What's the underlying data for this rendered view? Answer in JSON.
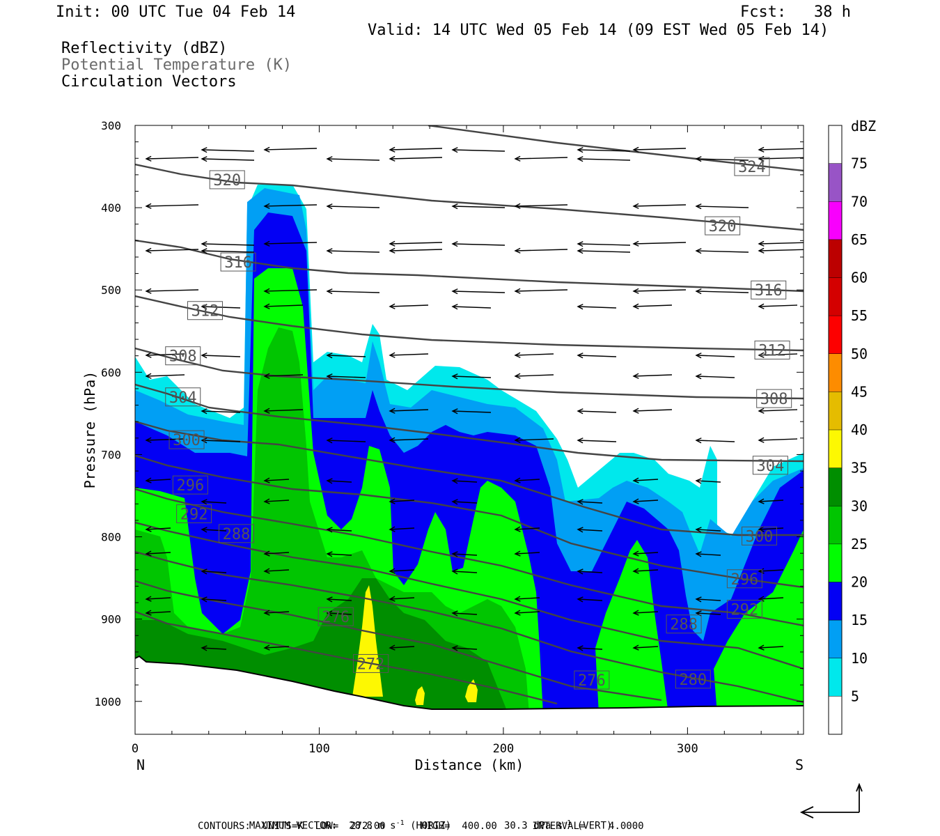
{
  "header": {
    "init": "Init: 00 UTC Tue 04 Feb 14",
    "fcst": "Fcst:   38 h",
    "valid": "Valid: 14 UTC Wed 05 Feb 14 (09 EST Wed 05 Feb 14)",
    "field1": "Reflectivity (dBZ)",
    "field2": "Potential Temperature (K)",
    "field3": "Circulation Vectors"
  },
  "chart_data": {
    "type": "heatmap",
    "title": "Reflectivity (dBZ) / Potential Temperature (K) / Circulation Vectors",
    "xlabel": "Distance (km)",
    "ylabel": "Pressure (hPa)",
    "xlim": [
      0,
      363
    ],
    "ylim": [
      1040,
      300
    ],
    "x_ticks": [
      "0",
      "100",
      "200",
      "300"
    ],
    "y_ticks": [
      "300",
      "400",
      "500",
      "600",
      "700",
      "800",
      "900",
      "1000"
    ],
    "x_end_labels": {
      "left": "N",
      "right": "S"
    },
    "colorbar": {
      "unit": "dBZ",
      "levels": [
        "5",
        "10",
        "15",
        "20",
        "25",
        "30",
        "35",
        "40",
        "45",
        "50",
        "55",
        "60",
        "65",
        "70",
        "75"
      ],
      "colors": [
        "#ffffff",
        "#00e8ec",
        "#019ff4",
        "#0300f4",
        "#02fd02",
        "#01c501",
        "#008e00",
        "#fdf802",
        "#e5bc00",
        "#fd8c00",
        "#fd0000",
        "#d40000",
        "#bc0000",
        "#f800fd",
        "#9854c6",
        "#ffffff"
      ]
    },
    "theta_contours": {
      "units": "K",
      "low": 272,
      "high": 400,
      "interval": 4,
      "labels": [
        {
          "value": "324",
          "x": 335,
          "p": 350
        },
        {
          "value": "320",
          "x": 50,
          "p": 366
        },
        {
          "value": "320",
          "x": 319,
          "p": 422
        },
        {
          "value": "316",
          "x": 56,
          "p": 466
        },
        {
          "value": "316",
          "x": 344,
          "p": 500
        },
        {
          "value": "312",
          "x": 38,
          "p": 525
        },
        {
          "value": "312",
          "x": 346,
          "p": 573
        },
        {
          "value": "308",
          "x": 26,
          "p": 580
        },
        {
          "value": "308",
          "x": 347,
          "p": 632
        },
        {
          "value": "304",
          "x": 26,
          "p": 630
        },
        {
          "value": "304",
          "x": 345,
          "p": 713
        },
        {
          "value": "300",
          "x": 28,
          "p": 682
        },
        {
          "value": "300",
          "x": 339,
          "p": 799
        },
        {
          "value": "296",
          "x": 30,
          "p": 737
        },
        {
          "value": "296",
          "x": 331,
          "p": 851
        },
        {
          "value": "292",
          "x": 32,
          "p": 772
        },
        {
          "value": "292",
          "x": 331,
          "p": 888
        },
        {
          "value": "288",
          "x": 55,
          "p": 796
        },
        {
          "value": "288",
          "x": 298,
          "p": 906
        },
        {
          "value": "276",
          "x": 109,
          "p": 897
        },
        {
          "value": "276",
          "x": 248,
          "p": 974
        },
        {
          "value": "272",
          "x": 128,
          "p": 954
        },
        {
          "value": "280",
          "x": 303,
          "p": 973
        }
      ]
    },
    "max_vector": {
      "horiz": "28.8 m s",
      "vert": "30.3 dPa s"
    }
  },
  "footer": {
    "max_vector_label": "MAXIMUM VECTOR:",
    "horiz_value": "28.8 m s",
    "horiz_unit": "(HORIZ)",
    "vert_value": "30.3 dPa s",
    "vert_unit": "(VERT)",
    "exp": "-1",
    "contours_line": "CONTOURS:  UNITS=K  LOW=  272.00      HIGH=  400.00      INTERVAL=    4.0000"
  }
}
